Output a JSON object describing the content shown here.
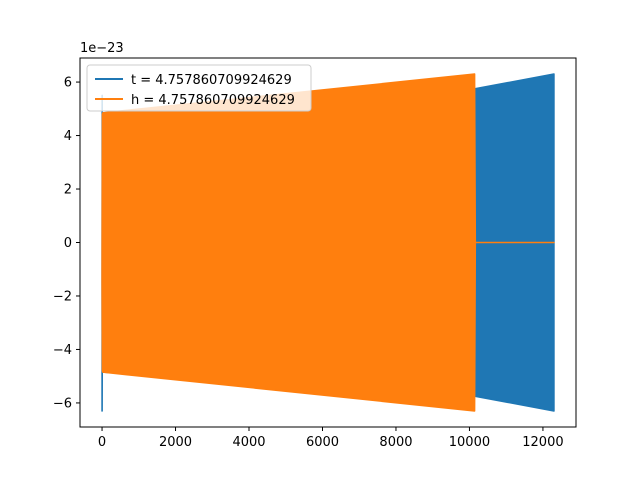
{
  "chart_data": {
    "type": "line",
    "title": "",
    "xlabel": "",
    "ylabel": "",
    "offset_text": "1e−23",
    "xlim": [
      -600,
      12900
    ],
    "ylim": [
      -6.9,
      6.9
    ],
    "x_ticks": [
      0,
      2000,
      4000,
      6000,
      8000,
      10000,
      12000
    ],
    "x_tick_labels": [
      "0",
      "2000",
      "4000",
      "6000",
      "8000",
      "10000",
      "12000"
    ],
    "y_ticks": [
      -6,
      -4,
      -2,
      0,
      2,
      4,
      6
    ],
    "y_tick_labels": [
      "−6",
      "−4",
      "−2",
      "0",
      "2",
      "4",
      "6"
    ],
    "grid": false,
    "legend_position": "upper-left",
    "series": [
      {
        "name": "t = 4.757860709924629",
        "color": "#1f77b4",
        "x": [
          0,
          3,
          6,
          12,
          20,
          10100,
          10150,
          12300
        ],
        "y_upper": [
          -6.3,
          5.5,
          4.8,
          4.8,
          4.85,
          5.75,
          5.75,
          6.3
        ],
        "y_lower": [
          -6.3,
          -6.3,
          -4.8,
          -4.8,
          -4.85,
          -5.75,
          -5.75,
          -6.3
        ]
      },
      {
        "name": "h = 4.757860709924629",
        "color": "#ff7f0e",
        "x": [
          0,
          10,
          20,
          10140,
          10160,
          12300
        ],
        "y_upper": [
          -1.0,
          4.8,
          4.85,
          6.3,
          0,
          0
        ],
        "y_lower": [
          -1.5,
          -4.8,
          -4.85,
          -6.3,
          0,
          0
        ]
      }
    ]
  }
}
